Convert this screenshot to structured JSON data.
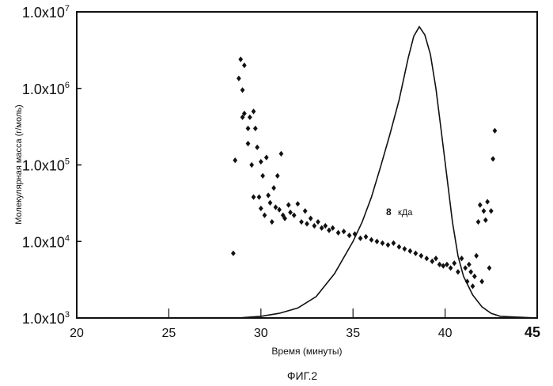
{
  "figure_caption": "ФИГ.2",
  "chart_data": {
    "type": "scatter",
    "xlabel": "Время (минуты)",
    "ylabel": "Молекулярная масса (г/моль)",
    "xlim": [
      20,
      45
    ],
    "ylim": [
      1000,
      10000000
    ],
    "y_scale": "log",
    "grid": false,
    "legend": "none",
    "x_ticks": [
      "20",
      "25",
      "30",
      "35",
      "40",
      "45"
    ],
    "y_ticks": [
      {
        "mantissa": "1.0x10",
        "exp": "3"
      },
      {
        "mantissa": "1.0x10",
        "exp": "4"
      },
      {
        "mantissa": "1.0x10",
        "exp": "5"
      },
      {
        "mantissa": "1.0x10",
        "exp": "6"
      },
      {
        "mantissa": "1.0x10",
        "exp": "7"
      }
    ],
    "annotation": {
      "number": "8",
      "unit": "кДа"
    },
    "series": [
      {
        "type": "scatter",
        "marker": "diamond",
        "points": [
          [
            28.5,
            7000
          ],
          [
            28.6,
            115000
          ],
          [
            28.8,
            1350000
          ],
          [
            28.9,
            2400000
          ],
          [
            29.0,
            950000
          ],
          [
            29.0,
            420000
          ],
          [
            29.1,
            2000000
          ],
          [
            29.1,
            470000
          ],
          [
            29.3,
            300000
          ],
          [
            29.3,
            190000
          ],
          [
            29.4,
            420000
          ],
          [
            29.5,
            100000
          ],
          [
            29.6,
            500000
          ],
          [
            29.6,
            38000
          ],
          [
            29.7,
            300000
          ],
          [
            29.8,
            170000
          ],
          [
            29.9,
            38000
          ],
          [
            30.0,
            110000
          ],
          [
            30.0,
            27000
          ],
          [
            30.1,
            72000
          ],
          [
            30.2,
            22000
          ],
          [
            30.3,
            125000
          ],
          [
            30.4,
            40000
          ],
          [
            30.5,
            32000
          ],
          [
            30.6,
            18000
          ],
          [
            30.7,
            50000
          ],
          [
            30.8,
            28000
          ],
          [
            30.9,
            72000
          ],
          [
            31.0,
            26000
          ],
          [
            31.1,
            140000
          ],
          [
            31.2,
            22000
          ],
          [
            31.3,
            20000
          ],
          [
            31.5,
            30000
          ],
          [
            31.6,
            24000
          ],
          [
            31.8,
            22000
          ],
          [
            32.0,
            31000
          ],
          [
            32.2,
            18000
          ],
          [
            32.4,
            25000
          ],
          [
            32.5,
            17000
          ],
          [
            32.7,
            20000
          ],
          [
            32.9,
            16000
          ],
          [
            33.1,
            18000
          ],
          [
            33.3,
            15000
          ],
          [
            33.5,
            16000
          ],
          [
            33.7,
            14000
          ],
          [
            33.9,
            15000
          ],
          [
            34.2,
            13000
          ],
          [
            34.5,
            13500
          ],
          [
            34.8,
            12000
          ],
          [
            35.1,
            12500
          ],
          [
            35.4,
            11000
          ],
          [
            35.7,
            11500
          ],
          [
            36.0,
            10500
          ],
          [
            36.3,
            10000
          ],
          [
            36.6,
            9500
          ],
          [
            36.9,
            9000
          ],
          [
            37.2,
            9500
          ],
          [
            37.5,
            8500
          ],
          [
            37.8,
            8000
          ],
          [
            38.1,
            7500
          ],
          [
            38.4,
            7000
          ],
          [
            38.7,
            6500
          ],
          [
            39.0,
            6000
          ],
          [
            39.3,
            5500
          ],
          [
            39.5,
            6000
          ],
          [
            39.7,
            5000
          ],
          [
            39.9,
            4800
          ],
          [
            40.1,
            5000
          ],
          [
            40.3,
            4500
          ],
          [
            40.5,
            5200
          ],
          [
            40.7,
            4000
          ],
          [
            40.9,
            6000
          ],
          [
            41.1,
            4500
          ],
          [
            41.2,
            3000
          ],
          [
            41.3,
            5000
          ],
          [
            41.4,
            4000
          ],
          [
            41.5,
            2600
          ],
          [
            41.6,
            3500
          ],
          [
            41.7,
            6500
          ],
          [
            41.8,
            18000
          ],
          [
            41.9,
            30000
          ],
          [
            42.0,
            3000
          ],
          [
            42.1,
            25000
          ],
          [
            42.2,
            19000
          ],
          [
            42.3,
            33000
          ],
          [
            42.4,
            4500
          ],
          [
            42.5,
            25000
          ],
          [
            42.6,
            120000
          ],
          [
            42.7,
            280000
          ]
        ]
      },
      {
        "type": "line",
        "points": [
          [
            20.0,
            1000
          ],
          [
            29.0,
            1010
          ],
          [
            30.0,
            1050
          ],
          [
            31.0,
            1150
          ],
          [
            32.0,
            1350
          ],
          [
            33.0,
            1900
          ],
          [
            34.0,
            3800
          ],
          [
            35.0,
            10000
          ],
          [
            35.5,
            18000
          ],
          [
            36.0,
            38000
          ],
          [
            36.5,
            95000
          ],
          [
            37.0,
            250000
          ],
          [
            37.5,
            700000
          ],
          [
            38.0,
            2500000
          ],
          [
            38.3,
            4800000
          ],
          [
            38.6,
            6400000
          ],
          [
            38.9,
            5000000
          ],
          [
            39.2,
            2800000
          ],
          [
            39.5,
            1000000
          ],
          [
            39.8,
            270000
          ],
          [
            40.1,
            70000
          ],
          [
            40.4,
            18000
          ],
          [
            40.7,
            6500
          ],
          [
            41.0,
            3500
          ],
          [
            41.5,
            2000
          ],
          [
            42.0,
            1400
          ],
          [
            42.5,
            1150
          ],
          [
            43.0,
            1050
          ],
          [
            45.0,
            1000
          ]
        ]
      }
    ]
  }
}
